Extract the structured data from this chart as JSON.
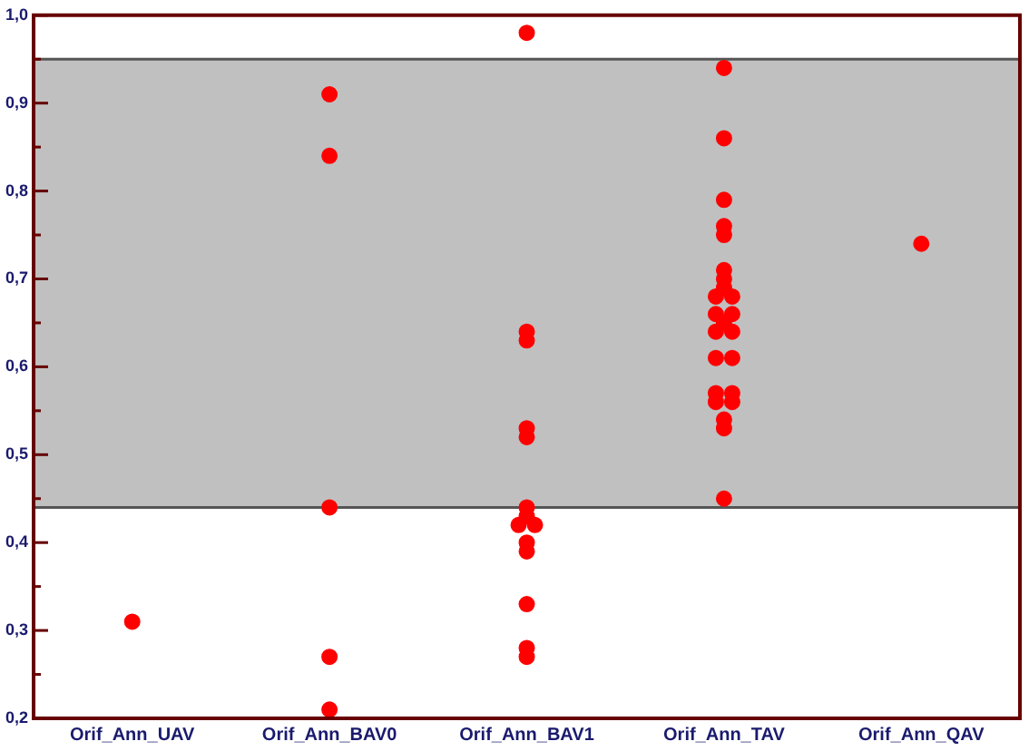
{
  "chart_data": {
    "type": "scatter",
    "categories": [
      "Orif_Ann_UAV",
      "Orif_Ann_BAV0",
      "Orif_Ann_BAV1",
      "Orif_Ann_TAV",
      "Orif_Ann_QAV"
    ],
    "series": [
      {
        "color": "#ff0000",
        "x": [
          "Orif_Ann_UAV"
        ],
        "values": [
          0.31
        ]
      },
      {
        "color": "#ff0000",
        "x": [
          "Orif_Ann_BAV0",
          "Orif_Ann_BAV0",
          "Orif_Ann_BAV0",
          "Orif_Ann_BAV0",
          "Orif_Ann_BAV0"
        ],
        "values": [
          0.91,
          0.84,
          0.44,
          0.27,
          0.21
        ]
      },
      {
        "color": "#ff0000",
        "x": [
          "Orif_Ann_BAV1",
          "Orif_Ann_BAV1",
          "Orif_Ann_BAV1",
          "Orif_Ann_BAV1",
          "Orif_Ann_BAV1",
          "Orif_Ann_BAV1",
          "Orif_Ann_BAV1",
          "Orif_Ann_BAV1",
          "Orif_Ann_BAV1",
          "Orif_Ann_BAV1",
          "Orif_Ann_BAV1",
          "Orif_Ann_BAV1",
          "Orif_Ann_BAV1",
          "Orif_Ann_BAV1"
        ],
        "values": [
          0.98,
          0.64,
          0.63,
          0.53,
          0.52,
          0.44,
          0.43,
          0.42,
          0.42,
          0.4,
          0.39,
          0.33,
          0.28,
          0.27
        ]
      },
      {
        "color": "#ff0000",
        "x": [
          "Orif_Ann_TAV",
          "Orif_Ann_TAV",
          "Orif_Ann_TAV",
          "Orif_Ann_TAV",
          "Orif_Ann_TAV",
          "Orif_Ann_TAV",
          "Orif_Ann_TAV",
          "Orif_Ann_TAV",
          "Orif_Ann_TAV",
          "Orif_Ann_TAV",
          "Orif_Ann_TAV",
          "Orif_Ann_TAV",
          "Orif_Ann_TAV",
          "Orif_Ann_TAV",
          "Orif_Ann_TAV",
          "Orif_Ann_TAV",
          "Orif_Ann_TAV",
          "Orif_Ann_TAV",
          "Orif_Ann_TAV",
          "Orif_Ann_TAV",
          "Orif_Ann_TAV",
          "Orif_Ann_TAV",
          "Orif_Ann_TAV",
          "Orif_Ann_TAV"
        ],
        "values": [
          0.94,
          0.86,
          0.79,
          0.76,
          0.75,
          0.71,
          0.7,
          0.69,
          0.68,
          0.68,
          0.66,
          0.66,
          0.65,
          0.64,
          0.64,
          0.61,
          0.61,
          0.57,
          0.57,
          0.56,
          0.56,
          0.54,
          0.53,
          0.45
        ]
      },
      {
        "color": "#ff0000",
        "x": [
          "Orif_Ann_QAV"
        ],
        "values": [
          0.74
        ]
      }
    ],
    "ylim": [
      0.2,
      1.0
    ],
    "yticks": [
      {
        "value": 0.2,
        "label": "0,2"
      },
      {
        "value": 0.25,
        "label": null
      },
      {
        "value": 0.3,
        "label": "0,3"
      },
      {
        "value": 0.35,
        "label": null
      },
      {
        "value": 0.4,
        "label": "0,4"
      },
      {
        "value": 0.45,
        "label": null
      },
      {
        "value": 0.5,
        "label": "0,5"
      },
      {
        "value": 0.55,
        "label": null
      },
      {
        "value": 0.6,
        "label": "0,6"
      },
      {
        "value": 0.65,
        "label": null
      },
      {
        "value": 0.7,
        "label": "0,7"
      },
      {
        "value": 0.75,
        "label": null
      },
      {
        "value": 0.8,
        "label": "0,8"
      },
      {
        "value": 0.85,
        "label": null
      },
      {
        "value": 0.9,
        "label": "0,9"
      },
      {
        "value": 0.95,
        "label": null
      },
      {
        "value": 1.0,
        "label": "1,0"
      }
    ],
    "bands": [
      {
        "axis": "y",
        "from": 0.44,
        "to": 0.95,
        "color": "#c0c0c0"
      }
    ],
    "marker": "circle",
    "grid": false,
    "legend": false
  }
}
